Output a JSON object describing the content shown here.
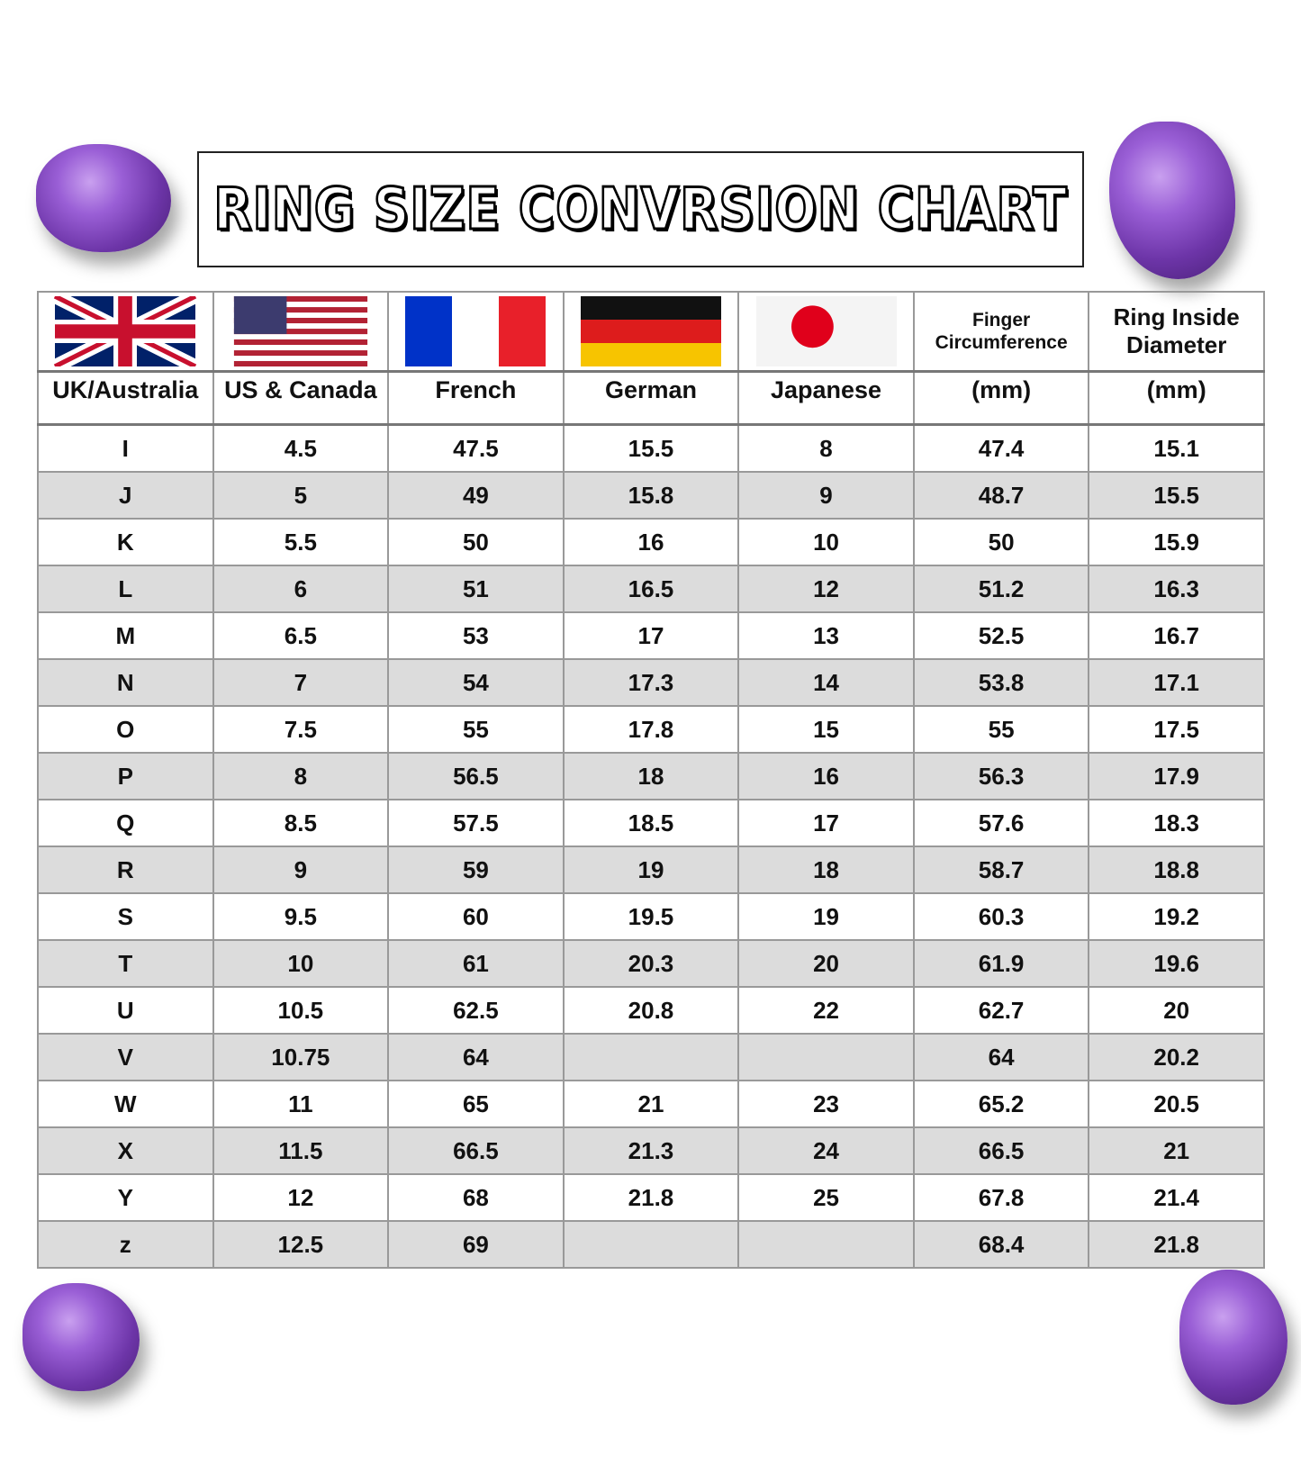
{
  "title": "RING SIZE CONVRSION CHART",
  "headers": {
    "flags": [
      "uk-flag-icon",
      "us-flag-icon",
      "france-flag-icon",
      "germany-flag-icon",
      "japan-flag-icon"
    ],
    "finger_top": "Finger Circumference",
    "ring_top": "Ring Inside Diameter",
    "labels": [
      "UK/Australia",
      "US & Canada",
      "French",
      "German",
      "Japanese",
      "(mm)",
      "(mm)"
    ]
  },
  "rows": [
    [
      "I",
      "4.5",
      "47.5",
      "15.5",
      "8",
      "47.4",
      "15.1"
    ],
    [
      "J",
      "5",
      "49",
      "15.8",
      "9",
      "48.7",
      "15.5"
    ],
    [
      "K",
      "5.5",
      "50",
      "16",
      "10",
      "50",
      "15.9"
    ],
    [
      "L",
      "6",
      "51",
      "16.5",
      "12",
      "51.2",
      "16.3"
    ],
    [
      "M",
      "6.5",
      "53",
      "17",
      "13",
      "52.5",
      "16.7"
    ],
    [
      "N",
      "7",
      "54",
      "17.3",
      "14",
      "53.8",
      "17.1"
    ],
    [
      "O",
      "7.5",
      "55",
      "17.8",
      "15",
      "55",
      "17.5"
    ],
    [
      "P",
      "8",
      "56.5",
      "18",
      "16",
      "56.3",
      "17.9"
    ],
    [
      "Q",
      "8.5",
      "57.5",
      "18.5",
      "17",
      "57.6",
      "18.3"
    ],
    [
      "R",
      "9",
      "59",
      "19",
      "18",
      "58.7",
      "18.8"
    ],
    [
      "S",
      "9.5",
      "60",
      "19.5",
      "19",
      "60.3",
      "19.2"
    ],
    [
      "T",
      "10",
      "61",
      "20.3",
      "20",
      "61.9",
      "19.6"
    ],
    [
      "U",
      "10.5",
      "62.5",
      "20.8",
      "22",
      "62.7",
      "20"
    ],
    [
      "V",
      "10.75",
      "64",
      "",
      "",
      "64",
      "20.2"
    ],
    [
      "W",
      "11",
      "65",
      "21",
      "23",
      "65.2",
      "20.5"
    ],
    [
      "X",
      "11.5",
      "66.5",
      "21.3",
      "24",
      "66.5",
      "21"
    ],
    [
      "Y",
      "12",
      "68",
      "21.8",
      "25",
      "67.8",
      "21.4"
    ],
    [
      "z",
      "12.5",
      "69",
      "",
      "",
      "68.4",
      "21.8"
    ]
  ],
  "colors": {
    "alt_row": "#dcdcdc",
    "border": "#999999",
    "gem": "#8a4fcf"
  }
}
